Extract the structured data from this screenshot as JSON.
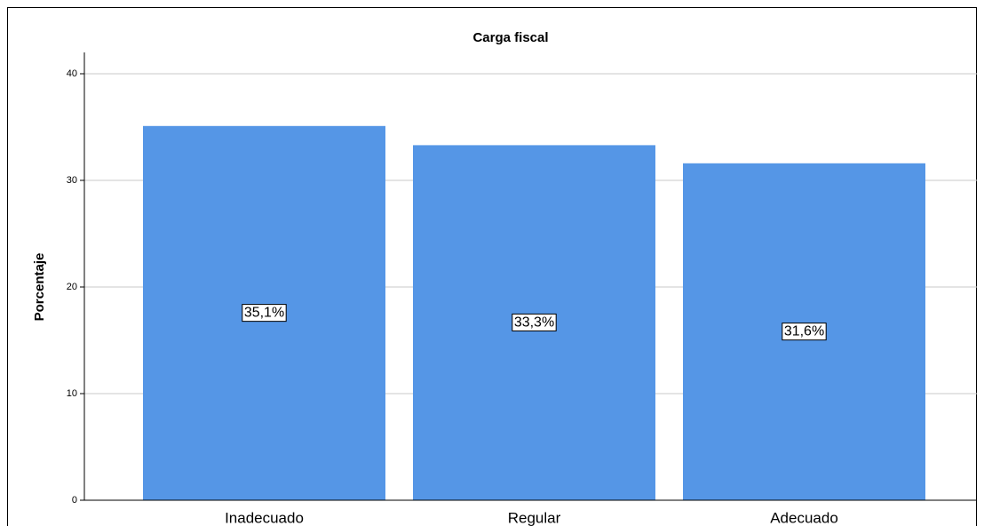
{
  "chart_data": {
    "type": "bar",
    "title": "Carga fiscal",
    "ylabel": "Porcentaje",
    "categories": [
      "Inadecuado",
      "Regular",
      "Adecuado"
    ],
    "values": [
      35.1,
      33.3,
      31.6
    ],
    "value_labels": [
      "35,1%",
      "33,3%",
      "31,6%"
    ],
    "color": "#5596e6",
    "ylim": [
      0,
      42
    ],
    "yticks": [
      0,
      10,
      20,
      30,
      40
    ],
    "grid": true
  }
}
